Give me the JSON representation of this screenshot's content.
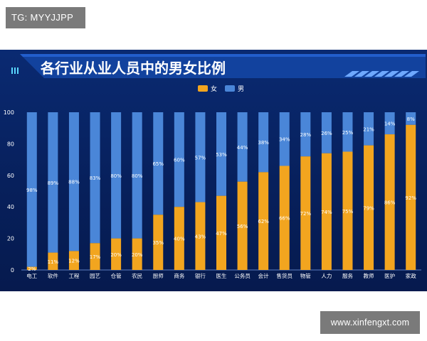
{
  "tag": {
    "text": "TG: MYYJJPP"
  },
  "watermark": {
    "text": "www.xinfengxt.com"
  },
  "colors": {
    "female": "#f2a51f",
    "male": "#4a86d8",
    "panel_bg": "#0a2a72",
    "title_band": "#1a57c4",
    "label_text": "#ffffff",
    "tick_text": "#ffffff"
  },
  "chart_data": {
    "type": "bar",
    "stacked": true,
    "title": "各行业从业人员中的男女比例",
    "categories": [
      "电工",
      "软件",
      "工程",
      "园艺",
      "仓管",
      "农民",
      "厨师",
      "商务",
      "银行",
      "医生",
      "公务员",
      "会计",
      "售货员",
      "物管",
      "人力",
      "服务",
      "教师",
      "医护",
      "家政"
    ],
    "series": [
      {
        "name": "女",
        "color": "#f2a51f",
        "values": [
          2,
          11,
          12,
          17,
          20,
          20,
          35,
          40,
          43,
          47,
          56,
          62,
          66,
          72,
          74,
          75,
          79,
          86,
          92
        ],
        "labels": [
          "2%",
          "11%",
          "12%",
          "17%",
          "20%",
          "20%",
          "35%",
          "40%",
          "43%",
          "47%",
          "56%",
          "62%",
          "66%",
          "72%",
          "74%",
          "75%",
          "79%",
          "86%",
          "92%"
        ]
      },
      {
        "name": "男",
        "color": "#4a86d8",
        "values": [
          98,
          89,
          88,
          83,
          80,
          80,
          65,
          60,
          57,
          53,
          44,
          38,
          34,
          28,
          26,
          25,
          21,
          14,
          8
        ],
        "labels": [
          "98%",
          "89%",
          "88%",
          "83%",
          "80%",
          "80%",
          "65%",
          "60%",
          "57%",
          "53%",
          "44%",
          "38%",
          "34%",
          "28%",
          "26%",
          "25%",
          "21%",
          "14%",
          "8%"
        ]
      }
    ],
    "ylim": [
      0,
      100
    ],
    "yticks": [
      0,
      20,
      40,
      60,
      80,
      100
    ],
    "legend_position": "top-right",
    "grid": false
  }
}
